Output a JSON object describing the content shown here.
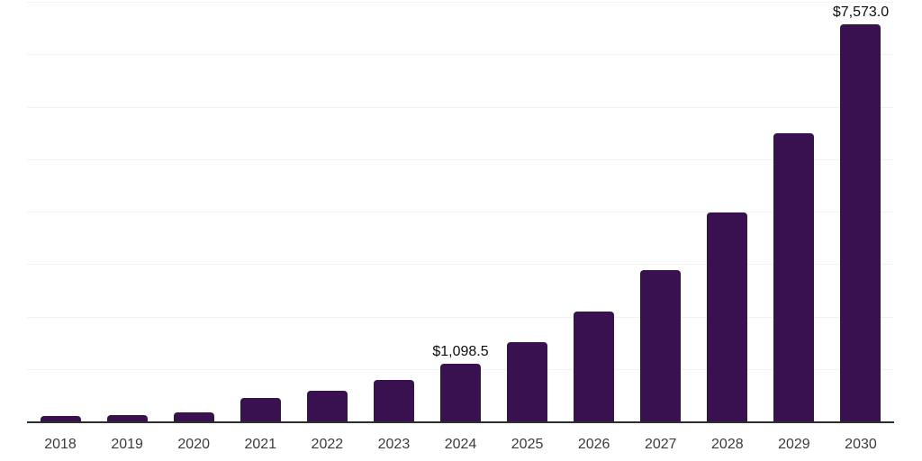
{
  "chart_data": {
    "type": "bar",
    "title": "",
    "xlabel": "",
    "ylabel": "",
    "categories": [
      "2018",
      "2019",
      "2020",
      "2021",
      "2022",
      "2023",
      "2024",
      "2025",
      "2026",
      "2027",
      "2028",
      "2029",
      "2030"
    ],
    "values": [
      105,
      120,
      165,
      440,
      590,
      785,
      1098.5,
      1515.5,
      2090.8,
      2884.4,
      3979.3,
      5489.9,
      7573.0
    ],
    "value_labels": [
      null,
      null,
      null,
      null,
      null,
      null,
      "$1,098.5",
      null,
      null,
      null,
      null,
      null,
      "$7,573.0"
    ],
    "ylim": [
      0,
      8000
    ],
    "grid_step": 1000,
    "grid": true,
    "legend_position": "none",
    "colors": {
      "bar": "#3A1150",
      "grid_line": "#f2f2f2",
      "axis_line": "#2e2e2e",
      "tick_label": "#3b3b3b",
      "value_label": "#0d0d0d",
      "background": "#ffffff"
    }
  }
}
